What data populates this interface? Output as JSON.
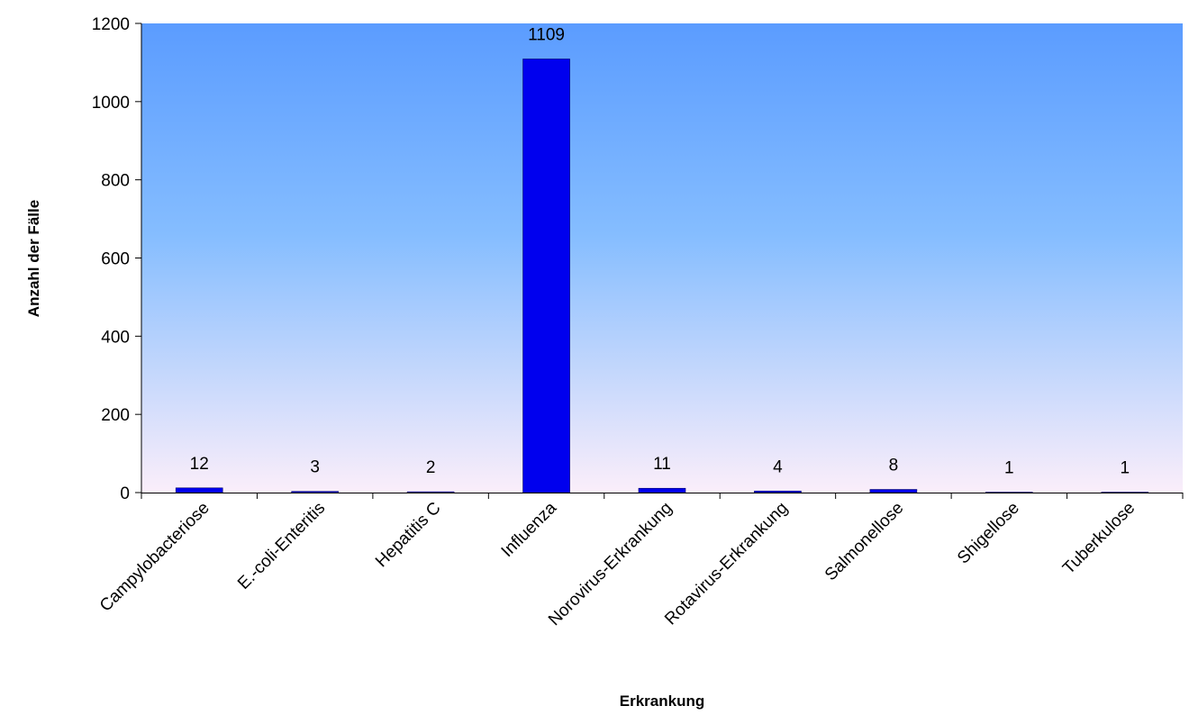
{
  "chart_data": {
    "type": "bar",
    "title": "",
    "xlabel": "Erkrankung",
    "ylabel": "Anzahl der Fälle",
    "categories": [
      "Campylobacteriose",
      "E.-coli-Enteritis",
      "Hepatitis C",
      "Influenza",
      "Norovirus-Erkrankung",
      "Rotavirus-Erkrankung",
      "Salmonellose",
      "Shigellose",
      "Tuberkulose"
    ],
    "values": [
      12,
      3,
      2,
      1109,
      11,
      4,
      8,
      1,
      1
    ],
    "ylim": [
      0,
      1200
    ],
    "yticks": [
      "0",
      "200",
      "400",
      "600",
      "800",
      "1000",
      "1200"
    ],
    "grid": false,
    "legend": "none",
    "colors": {
      "bar": "#0000ee",
      "bar_edge": "#000066",
      "plot_top": "#5b9cff",
      "plot_mid": "#85bdff",
      "plot_bottom": "#fbeefa"
    }
  }
}
